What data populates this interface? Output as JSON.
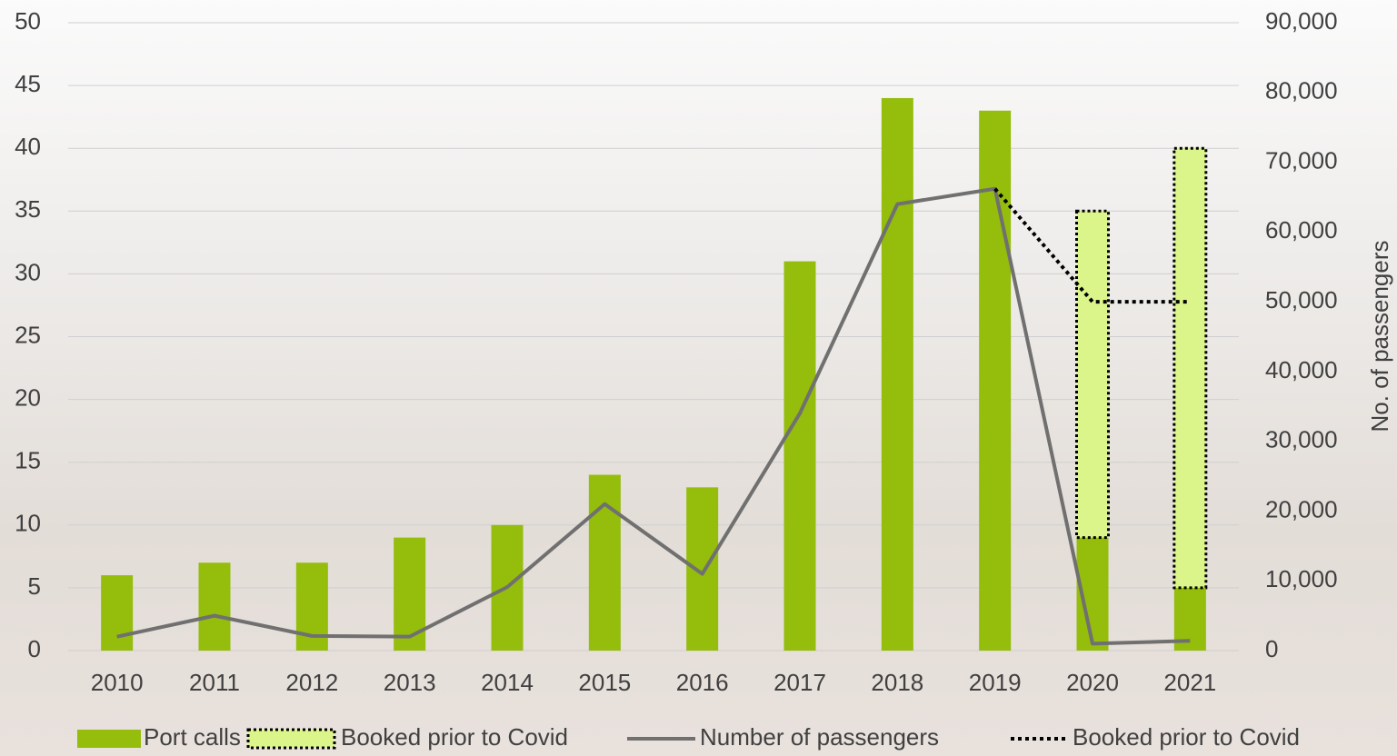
{
  "chart_data": {
    "type": "bar",
    "categories": [
      "2010",
      "2011",
      "2012",
      "2013",
      "2014",
      "2015",
      "2016",
      "2017",
      "2018",
      "2019",
      "2020",
      "2021"
    ],
    "series": [
      {
        "name": "Port calls",
        "kind": "bar",
        "color": "#94bd0c",
        "values": [
          6,
          7,
          7,
          9,
          10,
          14,
          13,
          31,
          44,
          43,
          9,
          5
        ]
      },
      {
        "name": "Booked prior to Covid",
        "kind": "bar",
        "stacked": true,
        "color": "#dcf58a",
        "values": [
          null,
          null,
          null,
          null,
          null,
          null,
          null,
          null,
          null,
          null,
          26,
          35
        ]
      },
      {
        "name": "Number of passengers",
        "kind": "line",
        "axis": "y2",
        "color": "#707070",
        "values": [
          2000,
          5000,
          2100,
          2000,
          9100,
          21000,
          11000,
          34000,
          64000,
          66200,
          1000,
          1400
        ]
      },
      {
        "name": "Booked prior to Covid",
        "kind": "line",
        "dotted": true,
        "axis": "y2",
        "color": "#000000",
        "values": [
          null,
          null,
          null,
          null,
          null,
          null,
          null,
          null,
          null,
          66200,
          50000,
          50000
        ]
      }
    ],
    "ylim": [
      0,
      50
    ],
    "yticks": [
      0,
      5,
      10,
      15,
      20,
      25,
      30,
      35,
      40,
      45,
      50
    ],
    "y2label": "No. of passengers",
    "y2lim": [
      0,
      90000
    ],
    "y2ticks": [
      0,
      {
        "value": 10000,
        "label": "10,000"
      },
      {
        "value": 20000,
        "label": "20,000"
      },
      {
        "value": 30000,
        "label": "30,000"
      },
      {
        "value": 40000,
        "label": "40,000"
      },
      {
        "value": 50000,
        "label": "50,000"
      },
      {
        "value": 60000,
        "label": "60,000"
      },
      {
        "value": 70000,
        "label": "70,000"
      },
      {
        "value": 80000,
        "label": "80,000"
      },
      {
        "value": 90000,
        "label": "90,000"
      }
    ],
    "grid": true,
    "legend": "bottom"
  }
}
